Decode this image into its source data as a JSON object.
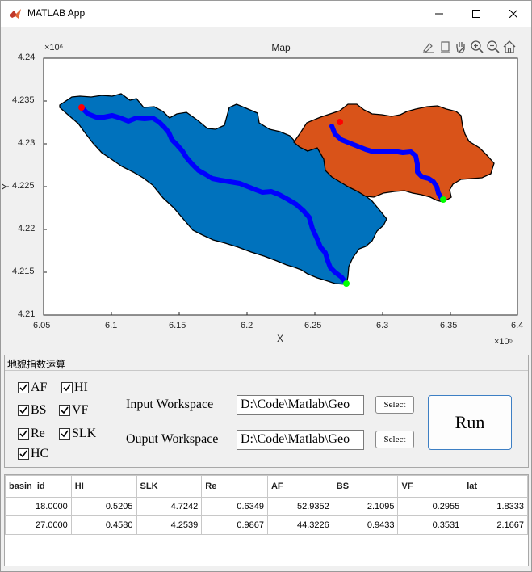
{
  "window": {
    "title": "MATLAB App"
  },
  "map": {
    "title": "Map",
    "xlabel": "X",
    "ylabel": "Y",
    "x_exponent": "×10⁵",
    "y_exponent": "×10⁶",
    "x_ticks": [
      "6.05",
      "6.1",
      "6.15",
      "6.2",
      "6.25",
      "6.3",
      "6.35",
      "6.4"
    ],
    "y_ticks": [
      "4.24",
      "4.235",
      "4.23",
      "4.225",
      "4.22",
      "4.215",
      "4.21"
    ],
    "basin_colors": {
      "west": "#0072BD",
      "east": "#D95319"
    },
    "river_color": "#0000FF",
    "source_point_color": "#FF0000",
    "outlet_point_color": "#00FF00",
    "toolbar_icons": [
      "brush-icon",
      "export-icon",
      "pan-hand-icon",
      "zoom-in-icon",
      "zoom-out-icon",
      "home-icon"
    ]
  },
  "panel": {
    "title": "地貌指数运算",
    "checkboxes": [
      {
        "label": "AF",
        "checked": true
      },
      {
        "label": "HI",
        "checked": true
      },
      {
        "label": "BS",
        "checked": true
      },
      {
        "label": "VF",
        "checked": true
      },
      {
        "label": "Re",
        "checked": true
      },
      {
        "label": "SLK",
        "checked": true
      },
      {
        "label": "HC",
        "checked": true
      }
    ],
    "input_label": "Input Workspace",
    "input_value": "D:\\Code\\Matlab\\Geo",
    "output_label": "Ouput Workspace",
    "output_value": "D:\\Code\\Matlab\\Geo",
    "select_label": "Select",
    "run_label": "Run"
  },
  "table": {
    "columns": [
      "basin_id",
      "HI",
      "SLK",
      "Re",
      "AF",
      "BS",
      "VF",
      "lat"
    ],
    "rows": [
      [
        "18.0000",
        "0.5205",
        "4.7242",
        "0.6349",
        "52.9352",
        "2.1095",
        "0.2955",
        "1.8333"
      ],
      [
        "27.0000",
        "0.4580",
        "4.2539",
        "0.9867",
        "44.3226",
        "0.9433",
        "0.3531",
        "2.1667"
      ]
    ]
  }
}
